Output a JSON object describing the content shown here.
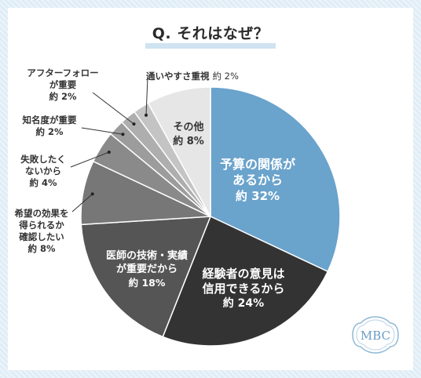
{
  "title": "Q. それはなぜ？",
  "chart_data": {
    "type": "pie",
    "title": "Q. それはなぜ？",
    "unit": "%",
    "slices": [
      {
        "lines": [
          "予算の関係が",
          "あるから"
        ],
        "value": 32,
        "value_label": "約 32%",
        "color": "#6aa3cc"
      },
      {
        "lines": [
          "経験者の意見は",
          "信用できるから"
        ],
        "value": 24,
        "value_label": "約 24%",
        "color": "#333333"
      },
      {
        "lines": [
          "医師の技術・実績",
          "が重要だから"
        ],
        "value": 18,
        "value_label": "約 18%",
        "color": "#555555"
      },
      {
        "lines": [
          "希望の効果を",
          "得られるか",
          "確認したい"
        ],
        "value": 8,
        "value_label": "約 8%",
        "color": "#777777"
      },
      {
        "lines": [
          "失敗したく",
          "ないから"
        ],
        "value": 4,
        "value_label": "約 4%",
        "color": "#8a8a8a"
      },
      {
        "lines": [
          "知名度が重要"
        ],
        "value": 2,
        "value_label": "約 2%",
        "color": "#9c9c9c"
      },
      {
        "lines": [
          "アフターフォロー",
          "が重要"
        ],
        "value": 2,
        "value_label": "約 2%",
        "color": "#aeaeae"
      },
      {
        "lines": [
          "通いやすさ重視"
        ],
        "value": 2,
        "value_label": "約 2%",
        "color": "#c4c4c4"
      },
      {
        "lines": [
          "その他"
        ],
        "value": 8,
        "value_label": "約 8%",
        "color": "#e6e6e6"
      }
    ]
  },
  "logo_text": "MBC"
}
